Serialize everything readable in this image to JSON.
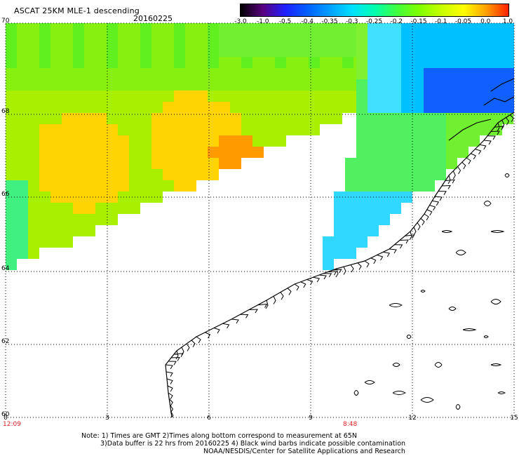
{
  "header": {
    "title": "ASCAT 25KM MLE-1 descending",
    "date": "20160225"
  },
  "colorbar": {
    "labels": [
      "-3.0",
      "-1.0",
      "-0.5",
      "-0.4",
      "-0.35",
      "-0.3",
      "-0.25",
      "-0.2",
      "-0.15",
      "-0.1",
      "-0.05",
      "0.0",
      "1.0"
    ],
    "colors": [
      "#000000",
      "#5a0080",
      "#2020ff",
      "#0060ff",
      "#00a0ff",
      "#00e0ff",
      "#00ffb0",
      "#40ff40",
      "#80ff00",
      "#c8ff00",
      "#ffff00",
      "#ffa000",
      "#ff2000"
    ]
  },
  "axes": {
    "lat_labels": [
      "70",
      "68",
      "66",
      "64",
      "62",
      "60"
    ],
    "lon_labels": [
      "0",
      "3",
      "6",
      "9",
      "12",
      "15"
    ],
    "time_labels": [
      "12:09",
      "8:48"
    ]
  },
  "notes": [
    "Note: 1) Times are GMT 2)Times along bottom correspond to measurement at 65N",
    "3)Data buffer is 22 hrs from 20160225 4) Black wind barbs indicate possible contamination",
    "NOAA/NESDIS/Center for Satellite Applications and Research"
  ]
}
